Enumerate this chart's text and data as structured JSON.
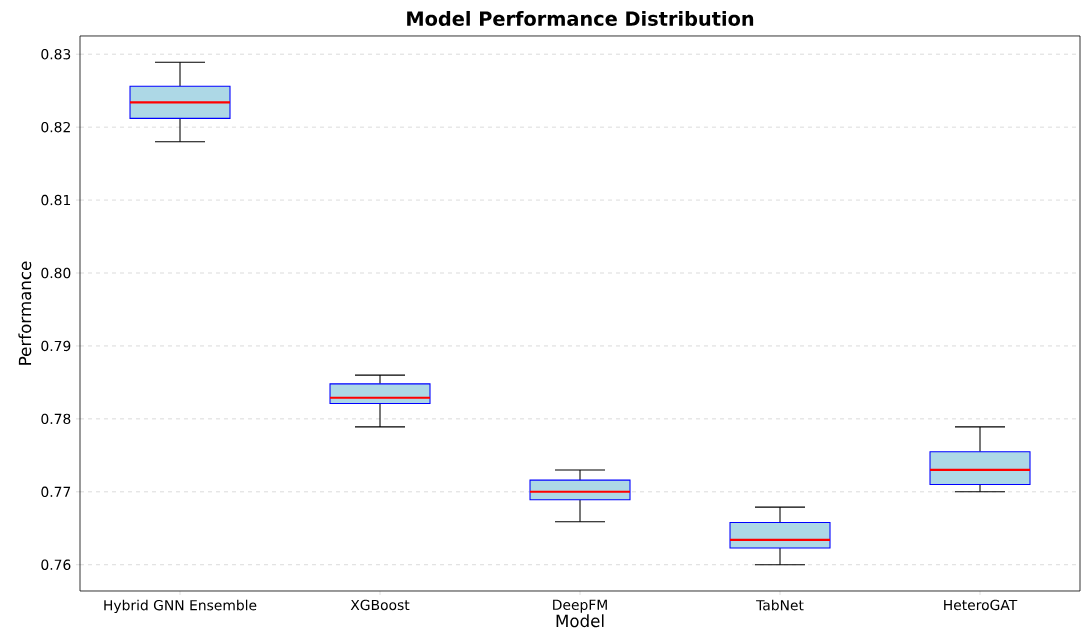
{
  "chart_data": {
    "type": "box",
    "title": "Model Performance Distribution",
    "xlabel": "Model",
    "ylabel": "Performance",
    "categories": [
      "Hybrid GNN Ensemble",
      "XGBoost",
      "DeepFM",
      "TabNet",
      "HeteroGAT"
    ],
    "series": [
      {
        "color": "#add8e6",
        "boxes": [
          {
            "low": 0.818,
            "q1": 0.8212,
            "median": 0.8234,
            "q3": 0.8256,
            "high": 0.8289
          },
          {
            "low": 0.7789,
            "q1": 0.7821,
            "median": 0.7829,
            "q3": 0.7848,
            "high": 0.786
          },
          {
            "low": 0.7659,
            "q1": 0.7689,
            "median": 0.77,
            "q3": 0.7716,
            "high": 0.773
          },
          {
            "low": 0.76,
            "q1": 0.7623,
            "median": 0.7634,
            "q3": 0.7658,
            "high": 0.7679
          },
          {
            "low": 0.77,
            "q1": 0.771,
            "median": 0.773,
            "q3": 0.7755,
            "high": 0.7789
          }
        ]
      }
    ],
    "ylim": [
      0.7564,
      0.8325
    ],
    "yticks": [
      0.76,
      0.77,
      0.78,
      0.79,
      {
        "value": 0.8,
        "label": "0.80"
      },
      0.81,
      0.82,
      0.83
    ],
    "grid": "y"
  }
}
